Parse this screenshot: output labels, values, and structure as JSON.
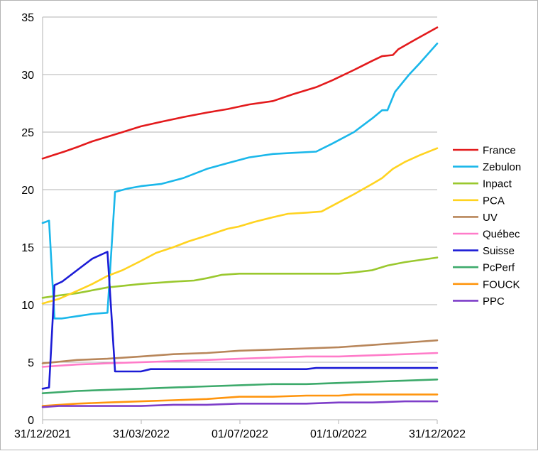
{
  "chart_data": {
    "type": "line",
    "x_ticks": [
      "31/12/2021",
      "31/03/2022",
      "01/07/2022",
      "01/10/2022",
      "31/12/2022"
    ],
    "x_range": [
      "2021-12-31",
      "2022-12-31"
    ],
    "ylim": [
      0,
      35
    ],
    "y_ticks": [
      "0",
      "5",
      "10",
      "15",
      "20",
      "25",
      "30",
      "35"
    ],
    "grid": "horizontal",
    "legend_position": "right",
    "series": [
      {
        "name": "France",
        "color": "#e31a1c",
        "points": [
          [
            "2021-12-31",
            22.7
          ],
          [
            "2022-01-10",
            23.0
          ],
          [
            "2022-01-20",
            23.3
          ],
          [
            "2022-02-01",
            23.7
          ],
          [
            "2022-02-15",
            24.2
          ],
          [
            "2022-03-01",
            24.6
          ],
          [
            "2022-03-15",
            25.0
          ],
          [
            "2022-04-01",
            25.5
          ],
          [
            "2022-04-20",
            25.9
          ],
          [
            "2022-05-10",
            26.3
          ],
          [
            "2022-06-01",
            26.7
          ],
          [
            "2022-06-20",
            27.0
          ],
          [
            "2022-07-10",
            27.4
          ],
          [
            "2022-08-01",
            27.7
          ],
          [
            "2022-08-20",
            28.3
          ],
          [
            "2022-09-10",
            28.9
          ],
          [
            "2022-09-25",
            29.5
          ],
          [
            "2022-10-15",
            30.4
          ],
          [
            "2022-11-01",
            31.2
          ],
          [
            "2022-11-10",
            31.6
          ],
          [
            "2022-11-20",
            31.7
          ],
          [
            "2022-11-25",
            32.2
          ],
          [
            "2022-12-10",
            33.0
          ],
          [
            "2022-12-31",
            34.1
          ]
        ]
      },
      {
        "name": "Zebulon",
        "color": "#1ab7ea",
        "points": [
          [
            "2021-12-31",
            17.1
          ],
          [
            "2022-01-06",
            17.3
          ],
          [
            "2022-01-11",
            8.8
          ],
          [
            "2022-01-18",
            8.8
          ],
          [
            "2022-02-01",
            9.0
          ],
          [
            "2022-02-15",
            9.2
          ],
          [
            "2022-03-01",
            9.3
          ],
          [
            "2022-03-08",
            19.8
          ],
          [
            "2022-03-20",
            20.1
          ],
          [
            "2022-04-01",
            20.3
          ],
          [
            "2022-04-20",
            20.5
          ],
          [
            "2022-05-10",
            21.0
          ],
          [
            "2022-06-01",
            21.8
          ],
          [
            "2022-06-20",
            22.3
          ],
          [
            "2022-07-10",
            22.8
          ],
          [
            "2022-08-01",
            23.1
          ],
          [
            "2022-08-20",
            23.2
          ],
          [
            "2022-09-10",
            23.3
          ],
          [
            "2022-09-25",
            24.0
          ],
          [
            "2022-10-15",
            25.0
          ],
          [
            "2022-11-01",
            26.2
          ],
          [
            "2022-11-10",
            26.9
          ],
          [
            "2022-11-15",
            26.9
          ],
          [
            "2022-11-22",
            28.5
          ],
          [
            "2022-12-05",
            30.0
          ],
          [
            "2022-12-15",
            31.0
          ],
          [
            "2022-12-31",
            32.7
          ]
        ]
      },
      {
        "name": "Inpact",
        "color": "#9ac82e",
        "points": [
          [
            "2021-12-31",
            10.6
          ],
          [
            "2022-01-15",
            10.8
          ],
          [
            "2022-02-01",
            11.0
          ],
          [
            "2022-03-01",
            11.5
          ],
          [
            "2022-04-01",
            11.8
          ],
          [
            "2022-05-01",
            12.0
          ],
          [
            "2022-05-20",
            12.1
          ],
          [
            "2022-06-01",
            12.3
          ],
          [
            "2022-06-15",
            12.6
          ],
          [
            "2022-07-01",
            12.7
          ],
          [
            "2022-08-01",
            12.7
          ],
          [
            "2022-09-01",
            12.7
          ],
          [
            "2022-10-01",
            12.7
          ],
          [
            "2022-10-15",
            12.8
          ],
          [
            "2022-11-01",
            13.0
          ],
          [
            "2022-11-15",
            13.4
          ],
          [
            "2022-12-01",
            13.7
          ],
          [
            "2022-12-31",
            14.1
          ]
        ]
      },
      {
        "name": "PCA",
        "color": "#ffd320",
        "points": [
          [
            "2021-12-31",
            10.1
          ],
          [
            "2022-01-15",
            10.5
          ],
          [
            "2022-02-01",
            11.2
          ],
          [
            "2022-02-15",
            11.8
          ],
          [
            "2022-03-01",
            12.5
          ],
          [
            "2022-03-15",
            13.0
          ],
          [
            "2022-04-01",
            13.8
          ],
          [
            "2022-04-15",
            14.5
          ],
          [
            "2022-05-01",
            15.0
          ],
          [
            "2022-05-15",
            15.5
          ],
          [
            "2022-06-01",
            16.0
          ],
          [
            "2022-06-20",
            16.6
          ],
          [
            "2022-07-01",
            16.8
          ],
          [
            "2022-07-15",
            17.2
          ],
          [
            "2022-08-01",
            17.6
          ],
          [
            "2022-08-15",
            17.9
          ],
          [
            "2022-09-01",
            18.0
          ],
          [
            "2022-09-15",
            18.1
          ],
          [
            "2022-10-01",
            18.9
          ],
          [
            "2022-10-15",
            19.6
          ],
          [
            "2022-11-01",
            20.5
          ],
          [
            "2022-11-10",
            21.0
          ],
          [
            "2022-11-20",
            21.8
          ],
          [
            "2022-12-01",
            22.4
          ],
          [
            "2022-12-15",
            23.0
          ],
          [
            "2022-12-31",
            23.6
          ]
        ]
      },
      {
        "name": "UV",
        "color": "#b8865a",
        "points": [
          [
            "2021-12-31",
            4.9
          ],
          [
            "2022-02-01",
            5.2
          ],
          [
            "2022-03-01",
            5.3
          ],
          [
            "2022-04-01",
            5.5
          ],
          [
            "2022-05-01",
            5.7
          ],
          [
            "2022-06-01",
            5.8
          ],
          [
            "2022-07-01",
            6.0
          ],
          [
            "2022-08-01",
            6.1
          ],
          [
            "2022-09-01",
            6.2
          ],
          [
            "2022-10-01",
            6.3
          ],
          [
            "2022-11-01",
            6.5
          ],
          [
            "2022-12-01",
            6.7
          ],
          [
            "2022-12-31",
            6.9
          ]
        ]
      },
      {
        "name": "Québec",
        "color": "#ff7bc9",
        "points": [
          [
            "2021-12-31",
            4.6
          ],
          [
            "2022-02-01",
            4.8
          ],
          [
            "2022-03-01",
            4.9
          ],
          [
            "2022-04-01",
            5.0
          ],
          [
            "2022-05-01",
            5.1
          ],
          [
            "2022-06-01",
            5.2
          ],
          [
            "2022-07-01",
            5.3
          ],
          [
            "2022-08-01",
            5.4
          ],
          [
            "2022-09-01",
            5.5
          ],
          [
            "2022-10-01",
            5.5
          ],
          [
            "2022-11-01",
            5.6
          ],
          [
            "2022-12-01",
            5.7
          ],
          [
            "2022-12-31",
            5.8
          ]
        ]
      },
      {
        "name": "Suisse",
        "color": "#1c1cd6",
        "points": [
          [
            "2021-12-31",
            2.7
          ],
          [
            "2022-01-06",
            2.8
          ],
          [
            "2022-01-11",
            11.7
          ],
          [
            "2022-01-18",
            12.0
          ],
          [
            "2022-02-01",
            13.0
          ],
          [
            "2022-02-15",
            14.0
          ],
          [
            "2022-03-01",
            14.6
          ],
          [
            "2022-03-08",
            4.2
          ],
          [
            "2022-04-01",
            4.2
          ],
          [
            "2022-04-10",
            4.4
          ],
          [
            "2022-05-01",
            4.4
          ],
          [
            "2022-09-01",
            4.4
          ],
          [
            "2022-09-10",
            4.5
          ],
          [
            "2022-10-01",
            4.5
          ],
          [
            "2022-12-31",
            4.5
          ]
        ]
      },
      {
        "name": "PcPerf",
        "color": "#3daa6b",
        "points": [
          [
            "2021-12-31",
            2.3
          ],
          [
            "2022-02-01",
            2.5
          ],
          [
            "2022-03-01",
            2.6
          ],
          [
            "2022-04-01",
            2.7
          ],
          [
            "2022-05-01",
            2.8
          ],
          [
            "2022-06-01",
            2.9
          ],
          [
            "2022-07-01",
            3.0
          ],
          [
            "2022-08-01",
            3.1
          ],
          [
            "2022-09-01",
            3.1
          ],
          [
            "2022-10-01",
            3.2
          ],
          [
            "2022-11-01",
            3.3
          ],
          [
            "2022-12-01",
            3.4
          ],
          [
            "2022-12-31",
            3.5
          ]
        ]
      },
      {
        "name": "FOUCK",
        "color": "#ff950e",
        "points": [
          [
            "2021-12-31",
            1.2
          ],
          [
            "2022-02-01",
            1.4
          ],
          [
            "2022-03-01",
            1.5
          ],
          [
            "2022-04-01",
            1.6
          ],
          [
            "2022-05-01",
            1.7
          ],
          [
            "2022-06-01",
            1.8
          ],
          [
            "2022-07-01",
            2.0
          ],
          [
            "2022-08-01",
            2.0
          ],
          [
            "2022-09-01",
            2.1
          ],
          [
            "2022-10-01",
            2.1
          ],
          [
            "2022-10-15",
            2.2
          ],
          [
            "2022-12-31",
            2.2
          ]
        ]
      },
      {
        "name": "PPC",
        "color": "#7e3ec9",
        "points": [
          [
            "2021-12-31",
            1.1
          ],
          [
            "2022-01-15",
            1.2
          ],
          [
            "2022-03-01",
            1.2
          ],
          [
            "2022-04-01",
            1.2
          ],
          [
            "2022-05-01",
            1.3
          ],
          [
            "2022-06-01",
            1.3
          ],
          [
            "2022-07-01",
            1.4
          ],
          [
            "2022-08-01",
            1.4
          ],
          [
            "2022-09-01",
            1.4
          ],
          [
            "2022-10-01",
            1.5
          ],
          [
            "2022-11-01",
            1.5
          ],
          [
            "2022-12-01",
            1.6
          ],
          [
            "2022-12-31",
            1.6
          ]
        ]
      }
    ]
  }
}
